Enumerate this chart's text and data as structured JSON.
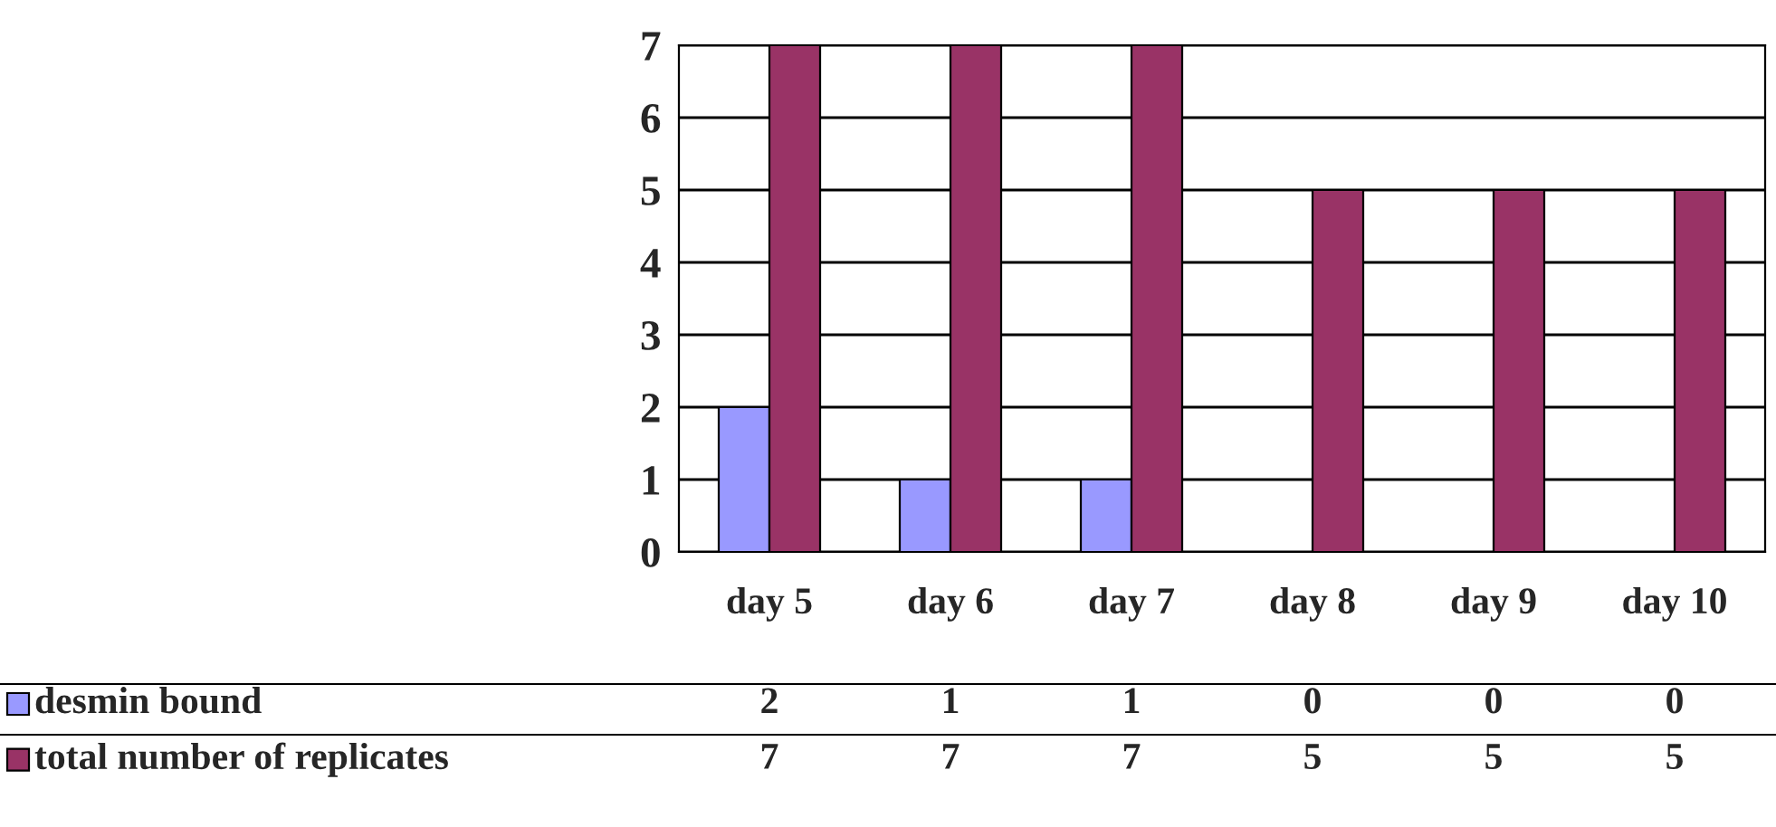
{
  "chart_data": {
    "type": "bar",
    "categories": [
      "day 5",
      "day 6",
      "day 7",
      "day 8",
      "day 9",
      "day 10"
    ],
    "series": [
      {
        "name": "desmin bound",
        "color": "#9999ff",
        "values": [
          2,
          1,
          1,
          0,
          0,
          0
        ]
      },
      {
        "name": "total number of replicates",
        "color": "#993366",
        "values": [
          7,
          7,
          7,
          5,
          5,
          5
        ]
      }
    ],
    "ylim": [
      0,
      7
    ],
    "yticks": [
      0,
      1,
      2,
      3,
      4,
      5,
      6,
      7
    ],
    "grid": "y",
    "data_labels": true,
    "legend": "bottom left"
  }
}
